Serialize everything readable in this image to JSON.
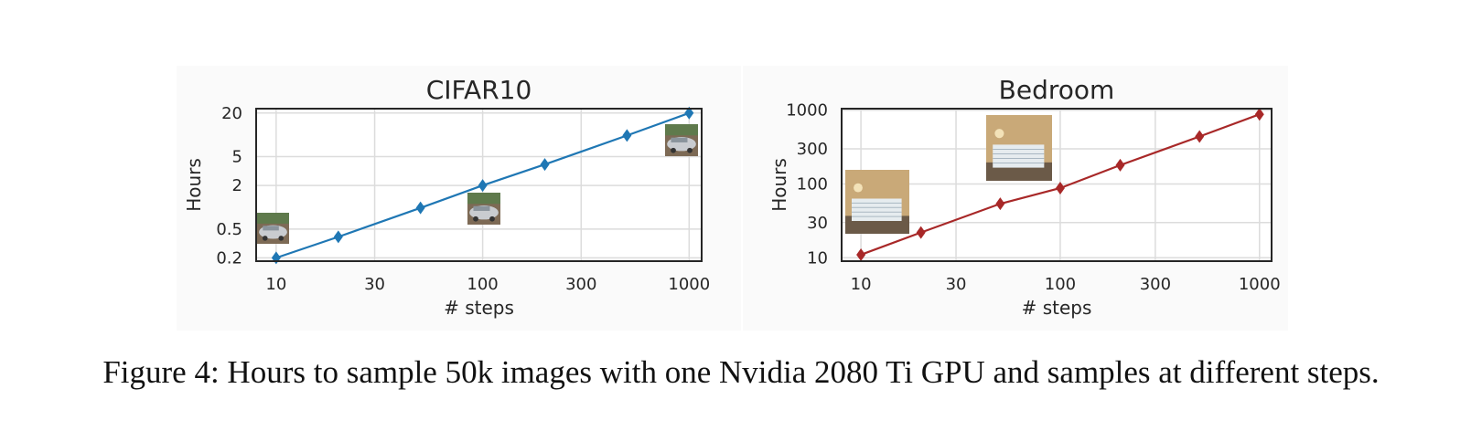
{
  "caption": "Figure 4: Hours to sample 50k images with one Nvidia 2080 Ti GPU and samples at different steps.",
  "chart_data": [
    {
      "type": "line",
      "title": "CIFAR10",
      "xlabel": "# steps",
      "ylabel": "Hours",
      "xscale": "log",
      "yscale": "log",
      "xticks": [
        10,
        30,
        100,
        300,
        1000
      ],
      "xtick_labels": [
        "10",
        "30",
        "100",
        "300",
        "1000"
      ],
      "yticks": [
        0.2,
        0.5,
        2,
        5,
        20
      ],
      "ytick_labels": [
        "0.2",
        "0.5",
        "2",
        "5",
        "20"
      ],
      "xlim": [
        8,
        1150
      ],
      "ylim": [
        0.18,
        23
      ],
      "grid": true,
      "color": "#1f77b4",
      "marker": "diamond",
      "series": [
        {
          "x": [
            10,
            20,
            50,
            100,
            200,
            500,
            1000
          ],
          "y": [
            0.2,
            0.39,
            0.98,
            2.0,
            3.9,
            9.8,
            20
          ]
        }
      ],
      "sample_images": [
        "car sample at 10 steps",
        "car sample at 100 steps",
        "car sample at 1000 steps"
      ]
    },
    {
      "type": "line",
      "title": "Bedroom",
      "xlabel": "# steps",
      "ylabel": "Hours",
      "xscale": "log",
      "yscale": "log",
      "xticks": [
        10,
        30,
        100,
        300,
        1000
      ],
      "xtick_labels": [
        "10",
        "30",
        "100",
        "300",
        "1000"
      ],
      "yticks": [
        10,
        30,
        100,
        300,
        1000
      ],
      "ytick_labels": [
        "10",
        "30",
        "100",
        "300",
        "1000"
      ],
      "xlim": [
        8,
        1150
      ],
      "ylim": [
        9,
        1050
      ],
      "grid": true,
      "color": "#a82828",
      "marker": "diamond",
      "series": [
        {
          "x": [
            10,
            20,
            50,
            100,
            200,
            500,
            1000
          ],
          "y": [
            11,
            22,
            54,
            88,
            180,
            440,
            880
          ]
        }
      ],
      "sample_images": [
        "bedroom sample at 10 steps",
        "bedroom sample at 100 steps"
      ]
    }
  ]
}
